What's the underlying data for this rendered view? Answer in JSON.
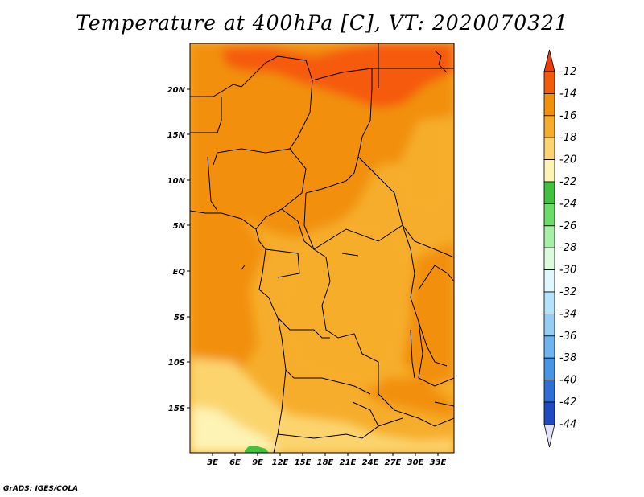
{
  "title": "Temperature at 400hPa [C], VT: 2020070321",
  "credit": "GrADS: IGES/COLA",
  "map": {
    "lon_ticks": [
      "3E",
      "6E",
      "9E",
      "12E",
      "15E",
      "18E",
      "21E",
      "24E",
      "27E",
      "30E",
      "33E"
    ],
    "lat_ticks": [
      "20N",
      "15N",
      "10N",
      "5N",
      "EQ",
      "5S",
      "10S",
      "15S"
    ]
  },
  "colorbar": {
    "levels": [
      "-12",
      "-14",
      "-16",
      "-18",
      "-20",
      "-22",
      "-24",
      "-26",
      "-28",
      "-30",
      "-32",
      "-34",
      "-36",
      "-38",
      "-40",
      "-42",
      "-44"
    ],
    "colors": [
      "#f55a08",
      "#f29008",
      "#f6ad2c",
      "#fbd46e",
      "#fdf3b4",
      "#3fc33f",
      "#69dc69",
      "#a6f0a6",
      "#dcfbdc",
      "#e1f7ff",
      "#b4e2fa",
      "#96cdf5",
      "#6eb4f0",
      "#4696e6",
      "#2d6ed7",
      "#1e4bc3",
      "#0f0a78",
      "#e1e1fa"
    ],
    "top_arrow_color": "#f03c08",
    "bottom_arrow_color": "#e1e1fa"
  }
}
